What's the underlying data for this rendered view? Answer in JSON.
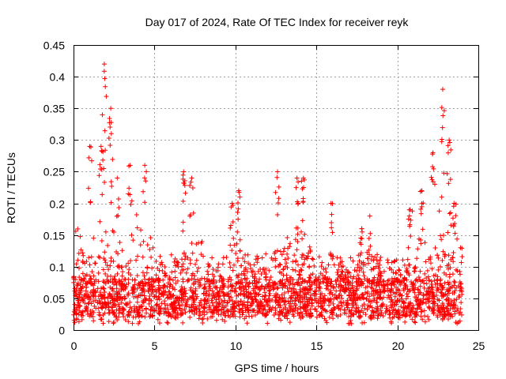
{
  "chart_data": {
    "type": "scatter",
    "title": "Day 017 of 2024, Rate Of TEC Index for receiver reyk",
    "xlabel": "GPS time / hours",
    "ylabel": "ROTI / TECUs",
    "xlim": [
      0,
      25
    ],
    "ylim": [
      0,
      0.45
    ],
    "xticks": [
      0,
      5,
      10,
      15,
      20,
      25
    ],
    "yticks": [
      0,
      0.05,
      0.1,
      0.15,
      0.2,
      0.25,
      0.3,
      0.35,
      0.4,
      0.45
    ],
    "grid": true,
    "marker": "plus",
    "series_color": "#ff0000",
    "x_data_range": [
      0,
      24
    ],
    "baseline_band": [
      0.02,
      0.08
    ],
    "peaks": [
      {
        "x": 1.9,
        "y": 0.42
      },
      {
        "x": 2.3,
        "y": 0.35
      },
      {
        "x": 1.0,
        "y": 0.29
      },
      {
        "x": 1.7,
        "y": 0.29
      },
      {
        "x": 2.7,
        "y": 0.24
      },
      {
        "x": 3.5,
        "y": 0.26
      },
      {
        "x": 4.4,
        "y": 0.26
      },
      {
        "x": 6.8,
        "y": 0.25
      },
      {
        "x": 7.3,
        "y": 0.24
      },
      {
        "x": 9.8,
        "y": 0.2
      },
      {
        "x": 10.2,
        "y": 0.22
      },
      {
        "x": 12.6,
        "y": 0.25
      },
      {
        "x": 13.8,
        "y": 0.24
      },
      {
        "x": 14.2,
        "y": 0.24
      },
      {
        "x": 15.9,
        "y": 0.2
      },
      {
        "x": 17.8,
        "y": 0.16
      },
      {
        "x": 18.3,
        "y": 0.18
      },
      {
        "x": 20.8,
        "y": 0.19
      },
      {
        "x": 21.5,
        "y": 0.22
      },
      {
        "x": 22.2,
        "y": 0.28
      },
      {
        "x": 22.8,
        "y": 0.38
      },
      {
        "x": 23.2,
        "y": 0.3
      },
      {
        "x": 23.5,
        "y": 0.2
      },
      {
        "x": 23.9,
        "y": 0.13
      }
    ],
    "envelope": [
      [
        0,
        0.14
      ],
      [
        0.5,
        0.21
      ],
      [
        1.0,
        0.23
      ],
      [
        1.5,
        0.22
      ],
      [
        2.0,
        0.2
      ],
      [
        2.5,
        0.19
      ],
      [
        3.0,
        0.19
      ],
      [
        3.5,
        0.2
      ],
      [
        4.0,
        0.19
      ],
      [
        4.5,
        0.18
      ],
      [
        5.0,
        0.12
      ],
      [
        5.5,
        0.13
      ],
      [
        6.0,
        0.15
      ],
      [
        6.5,
        0.14
      ],
      [
        7.0,
        0.16
      ],
      [
        7.5,
        0.17
      ],
      [
        8.0,
        0.14
      ],
      [
        8.5,
        0.11
      ],
      [
        9.0,
        0.1
      ],
      [
        9.5,
        0.13
      ],
      [
        10.0,
        0.15
      ],
      [
        10.5,
        0.13
      ],
      [
        11.0,
        0.12
      ],
      [
        11.5,
        0.11
      ],
      [
        12.0,
        0.13
      ],
      [
        12.5,
        0.17
      ],
      [
        13.0,
        0.16
      ],
      [
        13.5,
        0.16
      ],
      [
        14.0,
        0.17
      ],
      [
        14.5,
        0.14
      ],
      [
        15.0,
        0.12
      ],
      [
        15.5,
        0.11
      ],
      [
        16.0,
        0.16
      ],
      [
        16.5,
        0.11
      ],
      [
        17.0,
        0.09
      ],
      [
        17.5,
        0.1
      ],
      [
        18.0,
        0.12
      ],
      [
        18.5,
        0.13
      ],
      [
        19.0,
        0.11
      ],
      [
        19.5,
        0.12
      ],
      [
        20.0,
        0.1
      ],
      [
        20.5,
        0.12
      ],
      [
        21.0,
        0.13
      ],
      [
        21.5,
        0.16
      ],
      [
        22.0,
        0.17
      ],
      [
        22.5,
        0.2
      ],
      [
        23.0,
        0.17
      ],
      [
        23.5,
        0.16
      ],
      [
        24.0,
        0.13
      ]
    ]
  }
}
